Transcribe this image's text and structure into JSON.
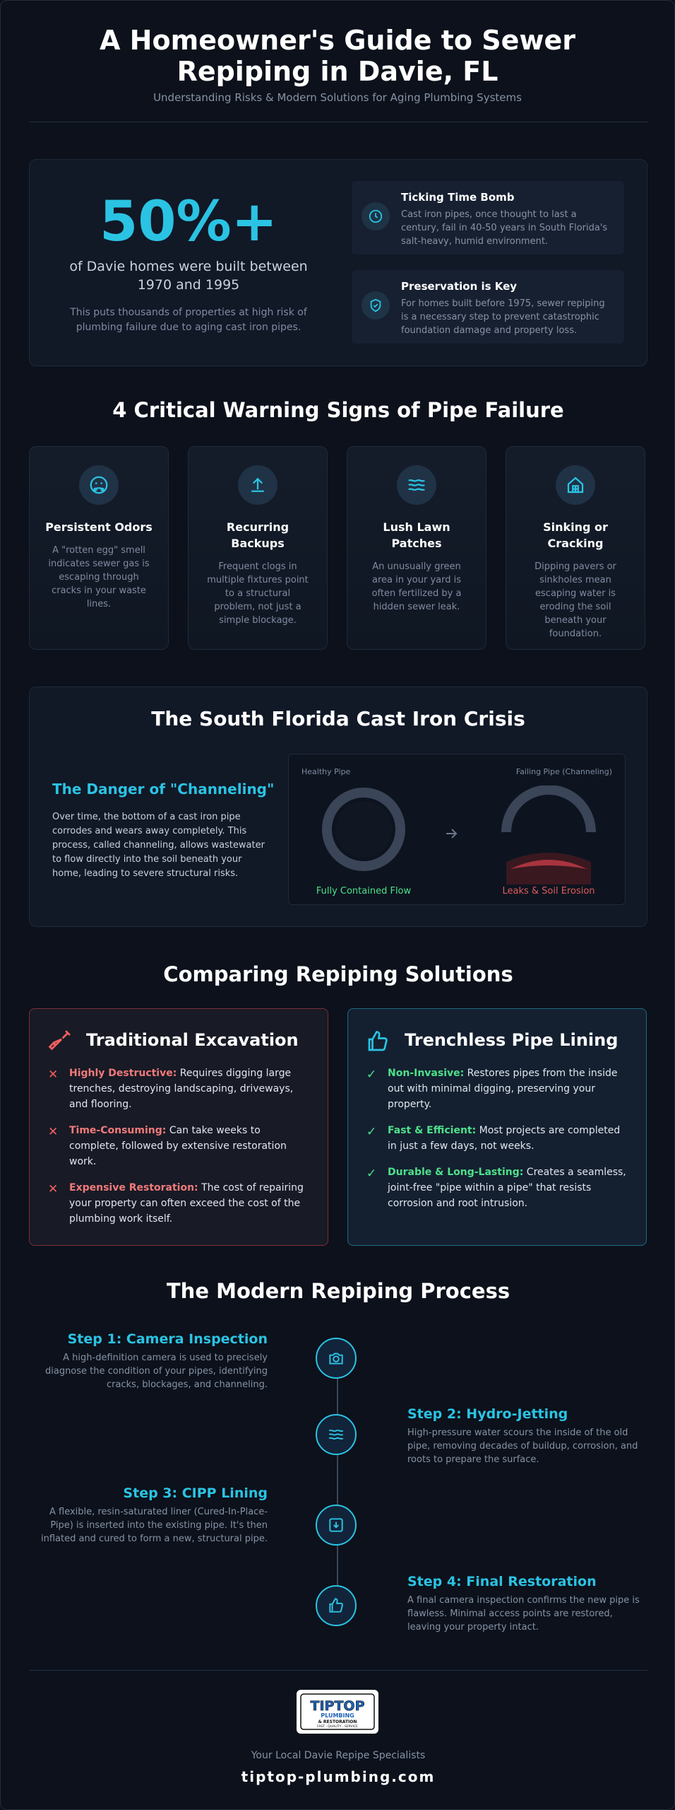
{
  "header": {
    "title": "A Homeowner's Guide to Sewer Repiping in Davie, FL",
    "subtitle": "Understanding Risks & Modern Solutions for Aging Plumbing Systems"
  },
  "stats": {
    "big_number": "50%+",
    "description": "of Davie homes were built between 1970 and 1995",
    "note": "This puts thousands of properties at high risk of plumbing failure due to aging cast iron pipes.",
    "cards": [
      {
        "icon": "clock-icon",
        "title": "Ticking Time Bomb",
        "text": "Cast iron pipes, once thought to last a century, fail in 40-50 years in South Florida's salt-heavy, humid environment."
      },
      {
        "icon": "shield-check-icon",
        "title": "Preservation is Key",
        "text": "For homes built before 1975, sewer repiping is a necessary step to prevent catastrophic foundation damage and property loss."
      }
    ]
  },
  "warning": {
    "title": "4 Critical Warning Signs of Pipe Failure",
    "signs": [
      {
        "icon": "sad-face-icon",
        "title": "Persistent Odors",
        "text": "A \"rotten egg\" smell indicates sewer gas is escaping through cracks in your waste lines."
      },
      {
        "icon": "arrow-up-icon",
        "title": "Recurring Backups",
        "text": "Frequent clogs in multiple fixtures point to a structural problem, not just a simple blockage."
      },
      {
        "icon": "waves-icon",
        "title": "Lush Lawn Patches",
        "text": "An unusually green area in your yard is often fertilized by a hidden sewer leak."
      },
      {
        "icon": "house-icon",
        "title": "Sinking or Cracking",
        "text": "Dipping pavers or sinkholes mean escaping water is eroding the soil beneath your foundation."
      }
    ]
  },
  "crisis": {
    "title": "The South Florida Cast Iron Crisis",
    "heading": "The Danger of \"Channeling\"",
    "text": "Over time, the bottom of a cast iron pipe corrodes and wears away completely. This process, called channeling, allows wastewater to flow directly into the soil beneath your home, leading to severe structural risks.",
    "healthy_label": "Healthy Pipe",
    "healthy_caption": "Fully Contained Flow",
    "failing_label": "Failing Pipe (Channeling)",
    "failing_caption": "Leaks & Soil Erosion",
    "colors": {
      "healthy": "#4ee08a",
      "failing": "#e05a5a"
    }
  },
  "compare": {
    "title": "Comparing Repiping Solutions",
    "traditional": {
      "icon": "shovel-icon",
      "title": "Traditional Excavation",
      "points": [
        {
          "bold": "Highly Destructive:",
          "text": " Requires digging large trenches, destroying landscaping, driveways, and flooring."
        },
        {
          "bold": "Time-Consuming:",
          "text": " Can take weeks to complete, followed by extensive restoration work."
        },
        {
          "bold": "Expensive Restoration:",
          "text": " The cost of repairing your property can often exceed the cost of the plumbing work itself."
        }
      ]
    },
    "trenchless": {
      "icon": "thumbs-up-icon",
      "title": "Trenchless Pipe Lining",
      "points": [
        {
          "bold": "Non-Invasive:",
          "text": " Restores pipes from the inside out with minimal digging, preserving your property."
        },
        {
          "bold": "Fast & Efficient:",
          "text": " Most projects are completed in just a few days, not weeks."
        },
        {
          "bold": "Durable & Long-Lasting:",
          "text": " Creates a seamless, joint-free \"pipe within a pipe\" that resists corrosion and root intrusion."
        }
      ]
    }
  },
  "process": {
    "title": "The Modern Repiping Process",
    "steps": [
      {
        "icon": "camera-icon",
        "title": "Step 1: Camera Inspection",
        "text": "A high-definition camera is used to precisely diagnose the condition of your pipes, identifying cracks, blockages, and channeling."
      },
      {
        "icon": "waves-icon",
        "title": "Step 2: Hydro-Jetting",
        "text": "High-pressure water scours the inside of the old pipe, removing decades of buildup, corrosion, and roots to prepare the surface."
      },
      {
        "icon": "download-box-icon",
        "title": "Step 3: CIPP Lining",
        "text": "A flexible, resin-saturated liner (Cured-In-Place-Pipe) is inserted into the existing pipe. It's then inflated and cured to form a new, structural pipe."
      },
      {
        "icon": "thumbs-up-icon",
        "title": "Step 4: Final Restoration",
        "text": "A final camera inspection confirms the new pipe is flawless. Minimal access points are restored, leaving your property intact."
      }
    ]
  },
  "footer": {
    "logo": {
      "line1": "TIPTOP",
      "line2": "PLUMBING",
      "line3": "& RESTORATION",
      "line4": "FAST · QUALITY · SERVICE"
    },
    "tagline": "Your Local Davie Repipe Specialists",
    "website": "tiptop-plumbing.com"
  },
  "colors": {
    "accent": "#2bc3e3",
    "background": "#0c111b"
  }
}
